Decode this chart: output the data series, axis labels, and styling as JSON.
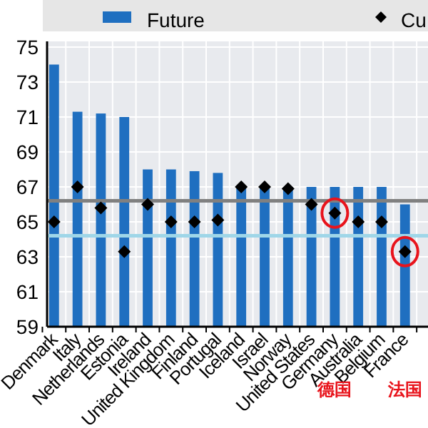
{
  "chart_data": {
    "type": "bar",
    "categories": [
      "Denmark",
      "Italy",
      "Netherlands",
      "Estonia",
      "Ireland",
      "United Kingdom",
      "Finland",
      "Portugal",
      "Iceland",
      "Israel",
      "Norway",
      "United States",
      "Germany",
      "Australia",
      "Belgium",
      "France"
    ],
    "series": [
      {
        "name": "Future",
        "type": "bar",
        "color": "#1f6fc0",
        "values": [
          74.0,
          71.3,
          71.2,
          71.0,
          68.0,
          68.0,
          67.9,
          67.8,
          67,
          67,
          67,
          67,
          67,
          67,
          67,
          66
        ]
      },
      {
        "name": "Cu",
        "type": "scatter",
        "marker": "diamond",
        "color": "#000000",
        "values": [
          65,
          67,
          65.8,
          63.3,
          66,
          65,
          65,
          65.1,
          67,
          67,
          66.9,
          66,
          65.5,
          65,
          65,
          63.3
        ]
      }
    ],
    "ylim": [
      59,
      75
    ],
    "yticks": [
      59,
      61,
      63,
      65,
      67,
      69,
      71,
      73,
      75
    ],
    "grid": true,
    "legend": "top",
    "ref_lines": [
      {
        "axis": "y",
        "value": 66.2,
        "color": "#808080"
      },
      {
        "axis": "y",
        "value": 64.2,
        "color": "#9fd6e8"
      }
    ],
    "annotations": [
      "德国",
      "法国"
    ]
  }
}
